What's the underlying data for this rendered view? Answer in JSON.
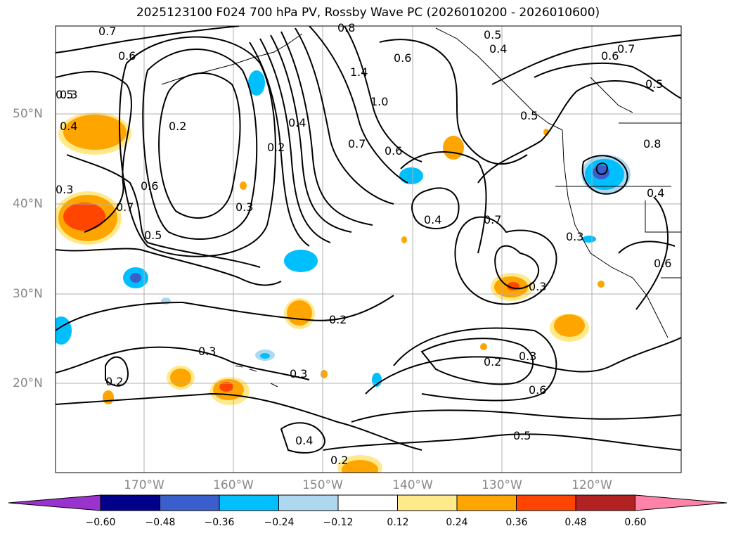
{
  "title": "2025123100 F024 700 hPa PV, Rossby Wave PC (2026010200 - 2026010600)",
  "lat_labels": [
    "50°N",
    "40°N",
    "30°N",
    "20°N"
  ],
  "lon_labels": [
    "170°W",
    "160°W",
    "150°W",
    "140°W",
    "130°W",
    "120°W"
  ],
  "colorbar": {
    "ticks": [
      "−0.60",
      "−0.48",
      "−0.36",
      "−0.24",
      "−0.12",
      "0.12",
      "0.24",
      "0.36",
      "0.48",
      "0.60"
    ],
    "colors": [
      "#9a32cd",
      "#00008b",
      "#3a5fcd",
      "#00bfff",
      "#add8f0",
      "#ffffff",
      "#ffe98a",
      "#ffa500",
      "#ff4500",
      "#b22222",
      "#ff83a8"
    ]
  },
  "contour_labels": [
    "0.7",
    "0.6",
    "0.3",
    "0.4",
    "0.2",
    "0.6",
    "0.7",
    "0.5",
    "0.3",
    "0.2",
    "0.4",
    "0.8",
    "1.4",
    "1.0",
    "0.7",
    "0.6",
    "0.4",
    "0.5",
    "0.4",
    "0.5",
    "0.8",
    "0.7",
    "0.6",
    "0.5",
    "0.6",
    "0.7",
    "0.3",
    "0.3",
    "0.4",
    "0.6",
    "0.2",
    "0.3",
    "0.3",
    "0.3",
    "0.2",
    "0.4",
    "0.2",
    "0.2",
    "0.6",
    "0.5",
    "0.3",
    "0.5"
  ]
}
